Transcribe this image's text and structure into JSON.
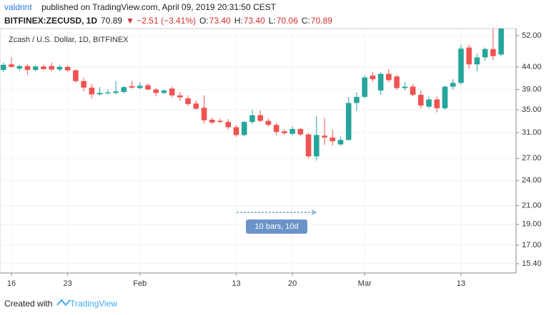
{
  "header": {
    "author": "valdrint",
    "published": "published on TradingView.com, April 09, 2019 20:31:50 CEST",
    "symbol": "BITFINEX:ZECUSD, 1D",
    "last": "70.89",
    "change": "▼ −2.51 (−3.41%)",
    "ohlc": [
      {
        "label": "O:",
        "value": "73.40"
      },
      {
        "label": "H:",
        "value": "73.40"
      },
      {
        "label": "L:",
        "value": "70.06"
      },
      {
        "label": "C:",
        "value": "70.89"
      }
    ]
  },
  "chart_data": {
    "type": "candlestick",
    "title": "Zcash / U.S. Dollar, 1D, BITFINEX",
    "categories": [
      null,
      "16",
      null,
      null,
      null,
      null,
      null,
      null,
      "23",
      null,
      null,
      null,
      null,
      null,
      null,
      null,
      null,
      "Feb",
      null,
      null,
      null,
      null,
      null,
      null,
      null,
      null,
      null,
      null,
      null,
      "13",
      null,
      null,
      null,
      null,
      null,
      null,
      "20",
      null,
      null,
      null,
      null,
      null,
      null,
      null,
      null,
      "Mar",
      null,
      null,
      null,
      null,
      null,
      null,
      null,
      null,
      null,
      null,
      null,
      "13",
      null,
      null,
      null,
      null,
      null
    ],
    "open": [
      43.3,
      44.6,
      43.6,
      44.2,
      43.3,
      44.1,
      44.2,
      43.4,
      44.0,
      43.2,
      40.8,
      39.4,
      38.0,
      38.2,
      38.3,
      38.5,
      39.7,
      39.3,
      39.9,
      39.0,
      38.3,
      39.2,
      37.8,
      37.2,
      36.2,
      35.4,
      33.2,
      33.0,
      32.8,
      31.9,
      30.6,
      32.8,
      34.0,
      33.0,
      32.3,
      31.2,
      30.8,
      31.6,
      30.7,
      27.3,
      30.5,
      30.2,
      29.1,
      29.8,
      36.3,
      37.5,
      42.0,
      38.8,
      42.4,
      41.8,
      39.3,
      39.6,
      37.9,
      35.6,
      37.0,
      35.3,
      39.6,
      40.4,
      48.8,
      44.6,
      46.3,
      48.4,
      47.0
    ],
    "high": [
      45.0,
      46.3,
      44.5,
      44.6,
      44.5,
      44.5,
      45.0,
      44.5,
      44.3,
      43.5,
      41.5,
      40.2,
      39.5,
      39.0,
      40.8,
      39.7,
      40.8,
      40.5,
      40.3,
      39.4,
      39.0,
      39.6,
      38.5,
      37.8,
      36.8,
      37.8,
      33.6,
      33.4,
      33.3,
      32.3,
      33.0,
      35.0,
      34.9,
      33.4,
      32.6,
      31.6,
      32.0,
      31.8,
      30.9,
      33.8,
      33.5,
      31.5,
      30.3,
      37.5,
      38.4,
      42.0,
      42.8,
      42.8,
      43.5,
      42.2,
      40.6,
      40.1,
      38.8,
      37.6,
      37.6,
      39.8,
      41.2,
      49.5,
      49.5,
      47.2,
      48.8,
      54.5,
      56.0
    ],
    "low": [
      42.8,
      43.8,
      43.0,
      42.3,
      43.0,
      43.2,
      43.0,
      43.0,
      42.9,
      40.5,
      38.6,
      37.2,
      37.8,
      38.0,
      38.0,
      38.2,
      39.2,
      39.1,
      38.9,
      37.6,
      38.0,
      37.4,
      36.7,
      35.7,
      35.0,
      32.5,
      32.4,
      32.6,
      31.5,
      30.3,
      30.4,
      32.4,
      32.8,
      32.0,
      30.6,
      30.6,
      30.5,
      30.4,
      27.0,
      26.7,
      29.0,
      28.9,
      28.9,
      29.7,
      34.8,
      37.2,
      40.6,
      37.9,
      40.5,
      38.9,
      38.8,
      37.6,
      35.3,
      35.3,
      34.5,
      35.0,
      39.0,
      40.0,
      43.6,
      43.0,
      45.5,
      45.6,
      46.6
    ],
    "close": [
      44.5,
      44.0,
      44.2,
      43.3,
      44.1,
      43.5,
      43.4,
      44.0,
      43.2,
      40.8,
      39.4,
      38.0,
      38.3,
      38.4,
      38.6,
      39.5,
      39.4,
      39.8,
      39.0,
      38.3,
      38.8,
      37.8,
      37.4,
      36.1,
      35.2,
      33.1,
      32.7,
      32.8,
      31.9,
      30.6,
      32.8,
      34.0,
      33.0,
      32.3,
      31.1,
      30.9,
      31.6,
      30.7,
      27.3,
      30.6,
      30.2,
      29.6,
      29.8,
      36.3,
      37.5,
      41.6,
      41.2,
      42.4,
      41.0,
      39.3,
      39.6,
      37.9,
      35.8,
      37.0,
      35.3,
      39.6,
      40.4,
      48.5,
      44.6,
      46.3,
      48.4,
      46.6,
      54.5
    ],
    "up_color": "#26a69a",
    "down_color": "#ef5350",
    "log_scale": true,
    "grid": true,
    "ylim": [
      14.66,
      54.0
    ],
    "yticks": [
      {
        "value": 15.4,
        "label": "15.40"
      },
      {
        "value": 17,
        "label": "17.00"
      },
      {
        "value": 19,
        "label": "19.00"
      },
      {
        "value": 21,
        "label": "21.00"
      },
      {
        "value": 24,
        "label": "24.00"
      },
      {
        "value": 27,
        "label": "27.00"
      },
      {
        "value": 31,
        "label": "31.00"
      },
      {
        "value": 35,
        "label": "35.00"
      },
      {
        "value": 39,
        "label": "39.00"
      },
      {
        "value": 44,
        "label": "44.00"
      },
      {
        "value": 52,
        "label": "52.00"
      }
    ],
    "annotation": "10 bars, 10d"
  },
  "footer": {
    "text": "Created with",
    "brand": "TradingView"
  }
}
